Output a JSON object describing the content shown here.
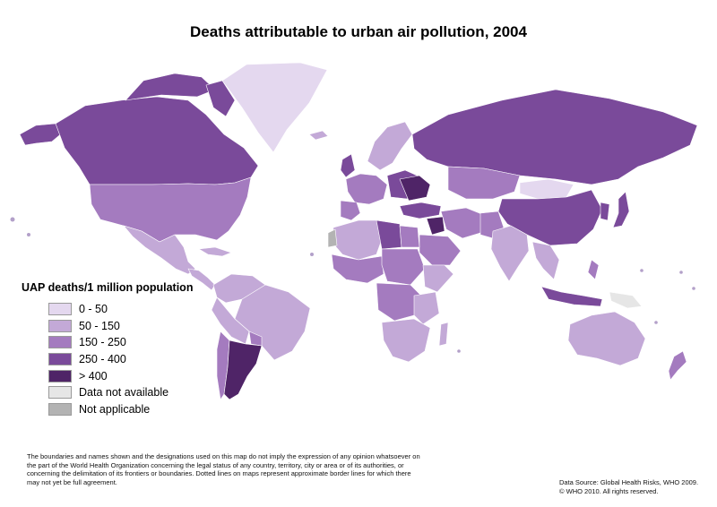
{
  "title": "Deaths attributable to urban air pollution, 2004",
  "legend": {
    "title": "UAP deaths/1 million population",
    "items": [
      {
        "label": "0 - 50",
        "color": "#e4d8ef"
      },
      {
        "label": "50 - 150",
        "color": "#c3a9d7"
      },
      {
        "label": "150 - 250",
        "color": "#a47bbf"
      },
      {
        "label": "250 - 400",
        "color": "#7a4a9a"
      },
      {
        "label": "> 400",
        "color": "#4f2467"
      },
      {
        "label": "Data not available",
        "color": "#e6e6e6"
      },
      {
        "label": "Not applicable",
        "color": "#b3b3b3"
      }
    ]
  },
  "disclaimer": "The boundaries and names shown and the designations used on this map do not imply the expression of any opinion whatsoever on the part of the World Health Organization concerning the legal status of any country, territory, city or area or of its authorities, or concerning the delimitation of its frontiers or boundaries.  Dotted lines on maps represent approximate border lines for which there may not yet be full agreement.",
  "source": {
    "line1": "Data Source: Global Health Risks, WHO 2009.",
    "line2": "© WHO 2010. All rights reserved."
  }
}
